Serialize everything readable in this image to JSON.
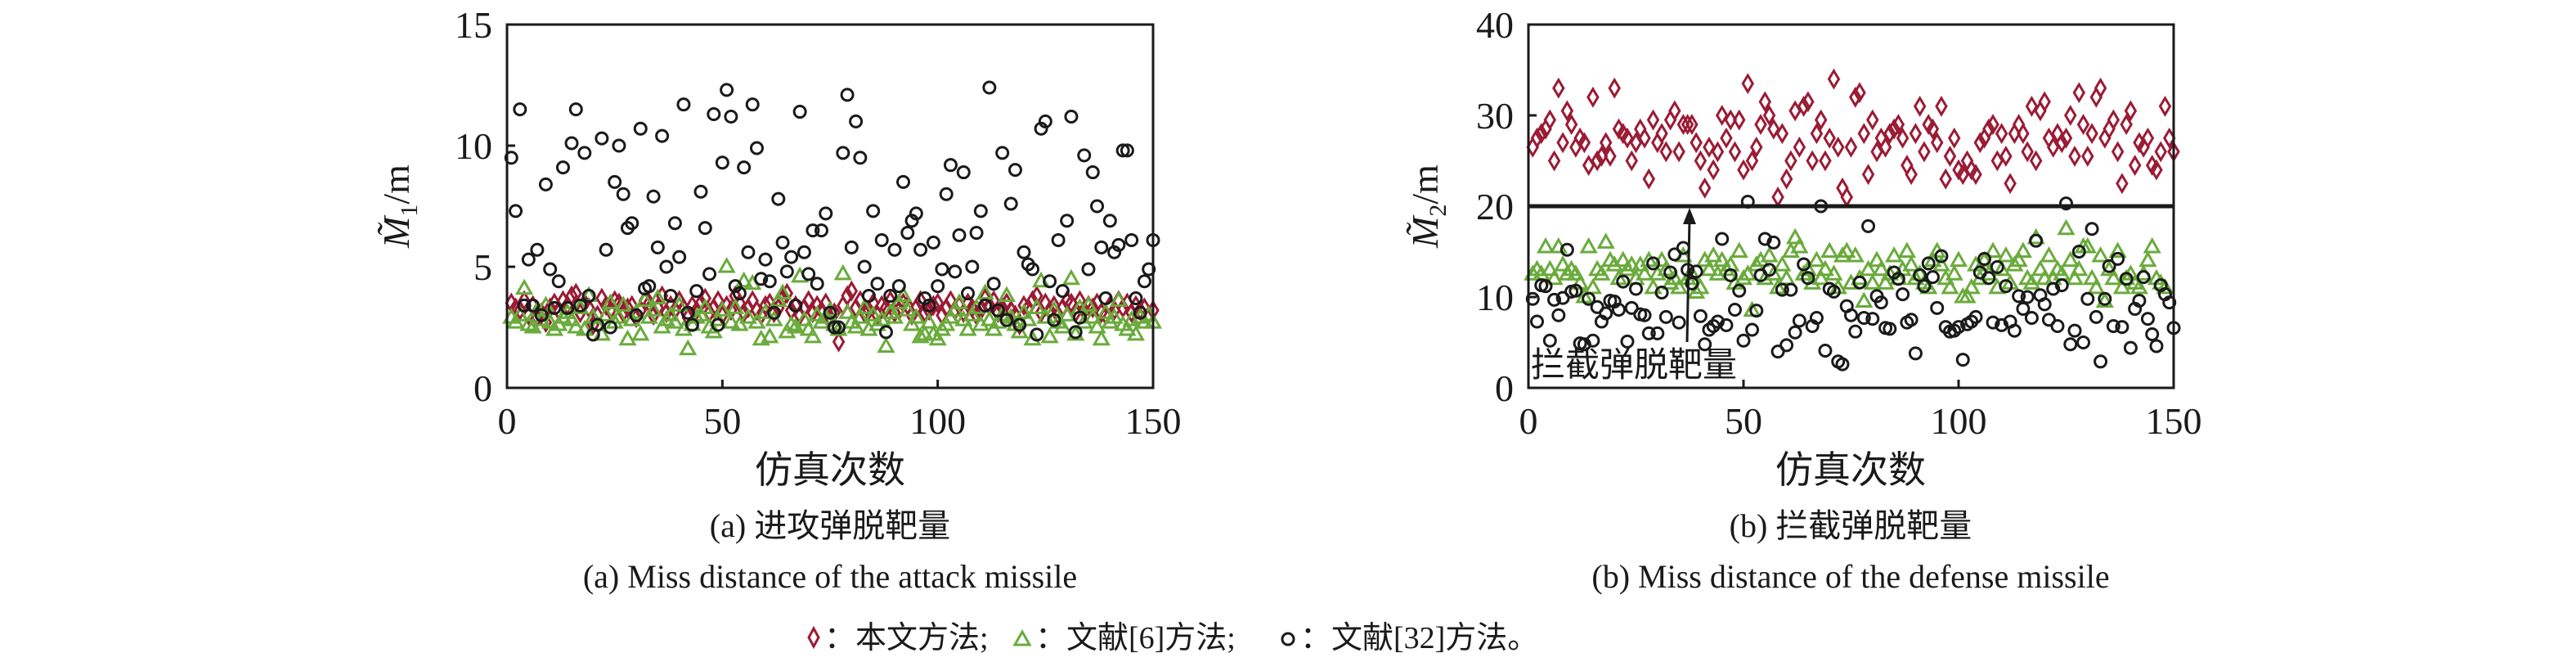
{
  "colors": {
    "proposed": "#9b1b34",
    "ref6": "#6aab3c",
    "ref32": "#1a1a1a",
    "axis": "#1a1a1a"
  },
  "legend": {
    "items": [
      {
        "marker": "diamond",
        "label": "：本文方法;"
      },
      {
        "marker": "triangle",
        "label": "：文献[6]方法;"
      },
      {
        "marker": "circle",
        "label": "：文献[32]方法。"
      }
    ]
  },
  "chart_data": [
    {
      "type": "scatter",
      "title_cn": "(a) 进攻弹脱靶量",
      "title_en": "(a) Miss distance of the attack missile",
      "xlabel": "仿真次数",
      "ylabel": {
        "symbol": "M̃",
        "subscript": "1",
        "unit": "/m"
      },
      "xlim": [
        0,
        150
      ],
      "ylim": [
        0,
        15
      ],
      "xticks": [
        0,
        50,
        100,
        150
      ],
      "yticks": [
        0,
        5,
        10,
        15
      ],
      "grid": false,
      "series": [
        {
          "name": "本文方法",
          "marker": "diamond",
          "values": [
            3.5,
            3.3,
            3.2,
            3.6,
            3.0,
            3.4,
            2.9,
            3.1,
            2.7,
            3.3,
            3.5,
            3.2,
            3.6,
            3.4,
            3.8,
            3.9,
            3.1,
            3.5,
            3.3,
            2.6,
            3.0,
            3.7,
            3.4,
            3.2,
            3.6,
            3.5,
            3.1,
            3.3,
            3.4,
            2.9,
            3.2,
            3.6,
            3.5,
            3.0,
            3.3,
            3.8,
            3.1,
            3.4,
            3.2,
            3.6,
            3.3,
            2.9,
            3.4,
            3.2,
            3.5,
            3.7,
            3.1,
            3.3,
            3.6,
            3.0,
            3.4,
            3.2,
            3.8,
            3.5,
            3.1,
            3.3,
            3.6,
            3.2,
            3.0,
            3.4,
            3.5,
            3.1,
            3.3,
            3.7,
            3.9,
            3.2,
            3.4,
            3.0,
            3.3,
            3.6,
            3.1,
            3.4,
            3.2,
            3.5,
            2.9,
            3.1,
            1.9,
            3.4,
            3.8,
            4.0,
            3.3,
            3.6,
            3.1,
            3.2,
            3.5,
            3.0,
            3.4,
            3.3,
            3.6,
            3.1,
            3.2,
            3.5,
            3.4,
            3.0,
            3.3,
            3.6,
            3.1,
            3.2,
            3.4,
            3.5,
            3.0,
            3.3,
            3.6,
            3.2,
            3.4,
            3.1,
            3.5,
            3.3,
            3.0,
            3.2,
            3.7,
            3.4,
            3.6,
            3.1,
            3.3,
            3.5,
            3.2,
            3.0,
            2.6,
            3.4,
            3.3,
            3.6,
            3.8,
            3.1,
            3.5,
            3.2,
            3.4,
            3.0,
            3.3,
            3.6,
            3.5,
            3.1,
            3.6,
            3.2,
            3.4,
            3.3,
            3.5,
            3.1,
            3.0,
            3.4,
            3.2,
            3.6,
            3.3,
            3.5,
            3.1,
            3.4,
            3.2,
            3.3,
            3.0,
            3.2
          ]
        },
        {
          "name": "文献[6]方法",
          "marker": "triangle",
          "values": [
            2.9,
            2.7,
            3.0,
            4.1,
            2.6,
            2.5,
            3.2,
            2.8,
            3.4,
            2.7,
            2.4,
            2.6,
            2.9,
            3.1,
            2.8,
            2.5,
            3.3,
            2.4,
            3.8,
            2.9,
            2.6,
            2.2,
            3.0,
            3.5,
            2.7,
            2.9,
            3.4,
            2.0,
            2.8,
            3.1,
            2.2,
            3.6,
            2.9,
            3.2,
            3.7,
            2.5,
            2.8,
            3.0,
            2.7,
            3.4,
            2.4,
            1.6,
            2.6,
            2.9,
            3.0,
            3.3,
            2.5,
            2.3,
            2.8,
            3.2,
            5.0,
            2.7,
            3.3,
            2.6,
            4.4,
            2.9,
            4.3,
            2.7,
            2.0,
            3.1,
            2.1,
            2.8,
            3.6,
            3.9,
            2.3,
            2.6,
            2.5,
            4.6,
            2.8,
            2.4,
            2.1,
            3.0,
            2.7,
            2.9,
            3.2,
            2.6,
            2.4,
            4.7,
            3.1,
            2.7,
            2.5,
            2.9,
            3.3,
            2.4,
            3.0,
            2.6,
            2.8,
            1.7,
            3.1,
            2.9,
            3.5,
            3.8,
            3.2,
            2.6,
            2.9,
            2.1,
            2.2,
            2.7,
            2.2,
            2.0,
            2.4,
            2.6,
            2.9,
            3.2,
            3.5,
            2.8,
            2.4,
            3.0,
            3.3,
            2.6,
            3.9,
            2.8,
            2.4,
            2.7,
            3.0,
            3.8,
            2.9,
            2.6,
            2.3,
            3.1,
            2.8,
            2.0,
            3.3,
            4.4,
            2.9,
            2.1,
            3.2,
            2.7,
            2.5,
            3.0,
            4.5,
            2.2,
            3.3,
            2.7,
            3.4,
            2.9,
            2.5,
            2.0,
            3.1,
            2.7,
            2.9,
            3.6,
            2.6,
            2.4,
            2.8,
            2.2,
            2.9,
            2.7,
            3.0,
            2.7
          ]
        },
        {
          "name": "文献[32]方法",
          "marker": "circle",
          "values": [
            9.5,
            7.3,
            11.5,
            3.4,
            5.3,
            3.4,
            5.7,
            3.0,
            8.4,
            4.9,
            3.3,
            4.4,
            9.1,
            3.3,
            10.1,
            11.5,
            3.4,
            9.7,
            3.8,
            2.2,
            2.6,
            10.3,
            5.7,
            2.5,
            8.5,
            10.0,
            8.0,
            6.6,
            6.8,
            3.0,
            10.7,
            4.1,
            4.2,
            7.9,
            5.8,
            10.4,
            5.0,
            3.8,
            6.8,
            5.4,
            11.7,
            3.1,
            2.6,
            4.0,
            8.1,
            6.6,
            4.7,
            11.3,
            2.6,
            9.3,
            12.3,
            11.2,
            4.2,
            3.9,
            9.1,
            5.6,
            11.7,
            9.9,
            4.5,
            5.3,
            4.4,
            3.1,
            7.8,
            6.0,
            4.8,
            5.4,
            3.4,
            11.4,
            5.6,
            4.7,
            6.5,
            4.3,
            6.5,
            7.2,
            3.1,
            2.5,
            2.5,
            9.7,
            12.1,
            5.8,
            11.0,
            9.5,
            5.0,
            3.8,
            7.3,
            4.3,
            6.1,
            2.3,
            3.8,
            5.7,
            4.2,
            8.5,
            6.4,
            6.9,
            7.2,
            5.7,
            3.7,
            3.4,
            6.0,
            4.2,
            4.9,
            8.0,
            9.2,
            4.8,
            6.3,
            8.9,
            3.9,
            5.0,
            6.4,
            7.3,
            3.4,
            12.4,
            4.3,
            3.2,
            9.7,
            2.8,
            7.6,
            9.0,
            2.6,
            5.6,
            5.1,
            4.9,
            2.2,
            10.7,
            11.0,
            4.4,
            2.8,
            6.1,
            4.0,
            6.9,
            11.2,
            2.3,
            2.9,
            9.6,
            4.9,
            8.9,
            7.5,
            5.8,
            3.7,
            6.9,
            5.6,
            5.9,
            9.8,
            9.8,
            6.1,
            3.7,
            3.1,
            4.4,
            4.9,
            6.1
          ]
        }
      ]
    },
    {
      "type": "scatter",
      "title_cn": "(b) 拦截弹脱靶量",
      "title_en": "(b) Miss distance of the defense missile",
      "xlabel": "仿真次数",
      "ylabel": {
        "symbol": "M̃",
        "subscript": "2",
        "unit": "/m"
      },
      "xlim": [
        0,
        150
      ],
      "ylim": [
        0,
        40
      ],
      "xticks": [
        0,
        50,
        100,
        150
      ],
      "yticks": [
        0,
        10,
        20,
        30,
        40
      ],
      "grid": false,
      "reference_line": {
        "y": 20
      },
      "annotation": {
        "text": "拦截弹脱靶量",
        "points_to": {
          "x": 37,
          "y": 20
        }
      },
      "series": [
        {
          "name": "本文方法",
          "marker": "diamond",
          "values": [
            26.5,
            27.5,
            28,
            28.5,
            29.5,
            25,
            33,
            27,
            30.5,
            29,
            26.5,
            27.5,
            27,
            24.5,
            32,
            25,
            25.5,
            27,
            25.5,
            33,
            28.5,
            28,
            27.5,
            25,
            27,
            28.5,
            27.5,
            23,
            29.5,
            27,
            28,
            26,
            29.5,
            30.5,
            26,
            29,
            29,
            29,
            27,
            25,
            22,
            26.5,
            24,
            26,
            30,
            27.5,
            29.5,
            26,
            29.5,
            24,
            33.5,
            25,
            26.5,
            29,
            31.5,
            30,
            28.5,
            21,
            28,
            23,
            25,
            30.5,
            26.5,
            31,
            31.5,
            25,
            28,
            29.5,
            25,
            27.5,
            34,
            26.5,
            22,
            21,
            26.5,
            32,
            32.5,
            28,
            23.5,
            29.5,
            26,
            27.5,
            26.5,
            28,
            28.5,
            29,
            27.5,
            24.5,
            23.5,
            28,
            31,
            26,
            29,
            28.5,
            27,
            31,
            23,
            25.5,
            27.5,
            24,
            23.5,
            25,
            24,
            23.5,
            27,
            27.5,
            28.5,
            29,
            25,
            28,
            25.5,
            22.5,
            28,
            29,
            28,
            26,
            31,
            25,
            30.5,
            31.5,
            27.5,
            26.5,
            28,
            27,
            27.5,
            30,
            25.5,
            32.5,
            29,
            25.5,
            28,
            32,
            33,
            27.5,
            28.5,
            29.5,
            26,
            22.5,
            29,
            30.5,
            24.5,
            27,
            26.5,
            27.5,
            24.5,
            24,
            26,
            31,
            27.5,
            26
          ]
        },
        {
          "name": "文献[6]方法",
          "marker": "triangle",
          "values": [
            12.5,
            13,
            12.5,
            15.5,
            13,
            12,
            15.5,
            13.5,
            12.5,
            13,
            12.5,
            11.5,
            10,
            15.5,
            11,
            13,
            12.5,
            16,
            14,
            13.5,
            12,
            14,
            13,
            13.5,
            12,
            13.5,
            12.5,
            14,
            11,
            12.5,
            14,
            13,
            11.5,
            12,
            11,
            14.5,
            12,
            12.5,
            10.5,
            11,
            14,
            13,
            14.5,
            12.5,
            14,
            13,
            13.5,
            11.5,
            15,
            12,
            12.5,
            8.5,
            13.5,
            14,
            12,
            14.5,
            12.5,
            11,
            13.5,
            12,
            15,
            16.5,
            15.5,
            12.5,
            13,
            11.5,
            14,
            12,
            13,
            15,
            12.5,
            11,
            14.5,
            15,
            11.5,
            14.5,
            12,
            9.5,
            13,
            11.5,
            14,
            13,
            11.5,
            12.5,
            14.5,
            12,
            13,
            15,
            13.5,
            12,
            12.5,
            11.5,
            11,
            14,
            15,
            13.5,
            12,
            11,
            12.5,
            14,
            10,
            10,
            11,
            13.5,
            12,
            14,
            12.5,
            15,
            11,
            13,
            14.5,
            11.5,
            13.5,
            14,
            15,
            12,
            11.5,
            16.5,
            13,
            12,
            14.5,
            12,
            13,
            12.5,
            17.5,
            14,
            12,
            13,
            15.5,
            15.5,
            12,
            11,
            14.5,
            9.5,
            13,
            12,
            15,
            11,
            12,
            12.5,
            11.5,
            11,
            12.5,
            14,
            15.5,
            12,
            11.5,
            11
          ]
        },
        {
          "name": "文献[32]方法",
          "marker": "circle",
          "values": [
            9.8,
            7.3,
            11.3,
            11.2,
            5.2,
            9.7,
            8.0,
            9.9,
            15.2,
            10.6,
            10.7,
            4.9,
            4.8,
            9.8,
            5.2,
            8.9,
            7.3,
            8.2,
            9.6,
            9.5,
            8.6,
            11.7,
            5.1,
            8.8,
            10.9,
            8.1,
            8.0,
            6.0,
            13.7,
            6.0,
            10.5,
            7.8,
            12.7,
            14.7,
            7.2,
            15.4,
            13.0,
            11.5,
            12.8,
            7.9,
            4.8,
            6.4,
            6.8,
            7.3,
            16.4,
            6.9,
            12.4,
            8.6,
            10.7,
            5.2,
            20.5,
            6.4,
            8.5,
            12.4,
            16.4,
            13.0,
            16.0,
            4.0,
            10.8,
            4.7,
            10.8,
            6.1,
            7.4,
            13.6,
            12.1,
            6.8,
            7.7,
            20.0,
            4.1,
            10.9,
            10.6,
            2.9,
            2.6,
            9.0,
            8.0,
            6.2,
            11.6,
            7.7,
            17.8,
            7.6,
            10.1,
            9.4,
            6.6,
            6.5,
            12.7,
            12.0,
            10.3,
            7.2,
            7.5,
            3.8,
            12.4,
            11.2,
            13.7,
            12.2,
            8.8,
            14.5,
            6.7,
            6.2,
            6.3,
            6.7,
            3.1,
            7.0,
            7.3,
            7.8,
            12.7,
            14.2,
            12.1,
            7.2,
            13.3,
            6.9,
            11.2,
            7.3,
            6.3,
            10.1,
            8.7,
            10.0,
            7.7,
            16.2,
            10.2,
            9.2,
            7.5,
            10.9,
            6.8,
            11.3,
            20.3,
            4.8,
            6.3,
            15.0,
            5.0,
            9.8,
            17.5,
            7.8,
            2.9,
            9.8,
            13.4,
            6.8,
            14.2,
            6.7,
            12.0,
            4.4,
            8.7,
            9.6,
            12.2,
            7.6,
            5.9,
            4.6,
            11.3,
            10.3,
            9.4,
            6.6
          ]
        }
      ]
    }
  ]
}
